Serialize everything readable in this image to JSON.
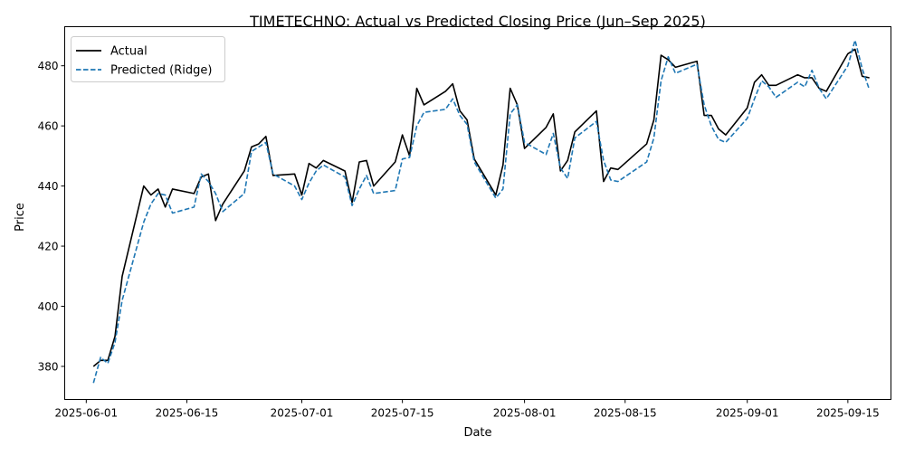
{
  "chart_data": {
    "type": "line",
    "title": "TIMETECHNO: Actual vs Predicted Closing Price (Jun–Sep 2025)",
    "xlabel": "Date",
    "ylabel": "Price",
    "xlim": [
      "2025-05-29",
      "2025-09-21"
    ],
    "ylim": [
      369,
      493
    ],
    "x_ticks": [
      "2025-06-01",
      "2025-06-15",
      "2025-07-01",
      "2025-07-15",
      "2025-08-01",
      "2025-08-15",
      "2025-09-01",
      "2025-09-15"
    ],
    "y_ticks": [
      380,
      400,
      420,
      440,
      460,
      480
    ],
    "grid": false,
    "legend_position": "top-left",
    "series": [
      {
        "name": "Actual",
        "color": "#000000",
        "style": "solid",
        "points": [
          [
            "2025-06-02",
            380
          ],
          [
            "2025-06-03",
            382
          ],
          [
            "2025-06-04",
            382
          ],
          [
            "2025-06-05",
            390
          ],
          [
            "2025-06-06",
            410
          ],
          [
            "2025-06-09",
            440
          ],
          [
            "2025-06-10",
            437
          ],
          [
            "2025-06-11",
            439
          ],
          [
            "2025-06-12",
            433
          ],
          [
            "2025-06-13",
            439
          ],
          [
            "2025-06-16",
            437.5
          ],
          [
            "2025-06-17",
            443
          ],
          [
            "2025-06-18",
            444
          ],
          [
            "2025-06-19",
            428.5
          ],
          [
            "2025-06-20",
            434
          ],
          [
            "2025-06-23",
            445
          ],
          [
            "2025-06-24",
            453
          ],
          [
            "2025-06-25",
            454
          ],
          [
            "2025-06-26",
            456.5
          ],
          [
            "2025-06-27",
            443.5
          ],
          [
            "2025-06-30",
            444
          ],
          [
            "2025-07-01",
            437
          ],
          [
            "2025-07-02",
            447.5
          ],
          [
            "2025-07-03",
            446
          ],
          [
            "2025-07-04",
            448.5
          ],
          [
            "2025-07-07",
            445
          ],
          [
            "2025-07-08",
            434.5
          ],
          [
            "2025-07-09",
            448
          ],
          [
            "2025-07-10",
            448.5
          ],
          [
            "2025-07-11",
            440
          ],
          [
            "2025-07-14",
            448
          ],
          [
            "2025-07-15",
            457
          ],
          [
            "2025-07-16",
            450
          ],
          [
            "2025-07-17",
            472.5
          ],
          [
            "2025-07-18",
            467
          ],
          [
            "2025-07-21",
            471.5
          ],
          [
            "2025-07-22",
            474
          ],
          [
            "2025-07-23",
            465
          ],
          [
            "2025-07-24",
            462
          ],
          [
            "2025-07-25",
            449
          ],
          [
            "2025-07-28",
            437
          ],
          [
            "2025-07-29",
            447
          ],
          [
            "2025-07-30",
            472.5
          ],
          [
            "2025-07-31",
            467
          ],
          [
            "2025-08-01",
            452.5
          ],
          [
            "2025-08-04",
            459.5
          ],
          [
            "2025-08-05",
            464
          ],
          [
            "2025-08-06",
            445
          ],
          [
            "2025-08-07",
            448.5
          ],
          [
            "2025-08-08",
            458
          ],
          [
            "2025-08-11",
            465
          ],
          [
            "2025-08-12",
            441.5
          ],
          [
            "2025-08-13",
            446
          ],
          [
            "2025-08-14",
            445.5
          ],
          [
            "2025-08-18",
            454
          ],
          [
            "2025-08-19",
            462
          ],
          [
            "2025-08-20",
            483.5
          ],
          [
            "2025-08-21",
            482
          ],
          [
            "2025-08-22",
            479.5
          ],
          [
            "2025-08-25",
            481.5
          ],
          [
            "2025-08-26",
            463.5
          ],
          [
            "2025-08-27",
            463.5
          ],
          [
            "2025-08-28",
            459
          ],
          [
            "2025-08-29",
            457
          ],
          [
            "2025-09-01",
            466
          ],
          [
            "2025-09-02",
            474.5
          ],
          [
            "2025-09-03",
            477
          ],
          [
            "2025-09-04",
            473.5
          ],
          [
            "2025-09-05",
            473.5
          ],
          [
            "2025-09-08",
            477
          ],
          [
            "2025-09-09",
            476
          ],
          [
            "2025-09-10",
            476
          ],
          [
            "2025-09-11",
            472.5
          ],
          [
            "2025-09-12",
            471.5
          ],
          [
            "2025-09-15",
            484
          ],
          [
            "2025-09-16",
            485.5
          ],
          [
            "2025-09-17",
            476.5
          ],
          [
            "2025-09-18",
            476
          ]
        ]
      },
      {
        "name": "Predicted (Ridge)",
        "color": "#1f77b4",
        "style": "dashed",
        "points": [
          [
            "2025-06-02",
            374.5
          ],
          [
            "2025-06-03",
            383
          ],
          [
            "2025-06-04",
            381
          ],
          [
            "2025-06-05",
            388
          ],
          [
            "2025-06-06",
            402
          ],
          [
            "2025-06-09",
            428
          ],
          [
            "2025-06-10",
            434
          ],
          [
            "2025-06-11",
            437.5
          ],
          [
            "2025-06-12",
            437
          ],
          [
            "2025-06-13",
            431
          ],
          [
            "2025-06-16",
            433
          ],
          [
            "2025-06-17",
            444
          ],
          [
            "2025-06-18",
            441.5
          ],
          [
            "2025-06-19",
            437.5
          ],
          [
            "2025-06-20",
            431.5
          ],
          [
            "2025-06-23",
            437.5
          ],
          [
            "2025-06-24",
            451.5
          ],
          [
            "2025-06-25",
            453
          ],
          [
            "2025-06-26",
            454.5
          ],
          [
            "2025-06-27",
            444
          ],
          [
            "2025-06-30",
            440
          ],
          [
            "2025-07-01",
            435.5
          ],
          [
            "2025-07-02",
            441
          ],
          [
            "2025-07-03",
            445
          ],
          [
            "2025-07-04",
            447
          ],
          [
            "2025-07-07",
            443
          ],
          [
            "2025-07-08",
            433.5
          ],
          [
            "2025-07-09",
            439
          ],
          [
            "2025-07-10",
            443.5
          ],
          [
            "2025-07-11",
            437.5
          ],
          [
            "2025-07-14",
            438.5
          ],
          [
            "2025-07-15",
            449
          ],
          [
            "2025-07-16",
            449.5
          ],
          [
            "2025-07-17",
            460
          ],
          [
            "2025-07-18",
            464.5
          ],
          [
            "2025-07-21",
            465.5
          ],
          [
            "2025-07-22",
            469
          ],
          [
            "2025-07-23",
            463.5
          ],
          [
            "2025-07-24",
            460.5
          ],
          [
            "2025-07-25",
            448
          ],
          [
            "2025-07-28",
            436
          ],
          [
            "2025-07-29",
            439
          ],
          [
            "2025-07-30",
            464
          ],
          [
            "2025-07-31",
            467
          ],
          [
            "2025-08-01",
            454.5
          ],
          [
            "2025-08-04",
            450.5
          ],
          [
            "2025-08-05",
            457.5
          ],
          [
            "2025-08-06",
            446
          ],
          [
            "2025-08-07",
            442.5
          ],
          [
            "2025-08-08",
            456
          ],
          [
            "2025-08-11",
            461.5
          ],
          [
            "2025-08-12",
            448.5
          ],
          [
            "2025-08-13",
            442
          ],
          [
            "2025-08-14",
            441.5
          ],
          [
            "2025-08-18",
            448
          ],
          [
            "2025-08-19",
            456
          ],
          [
            "2025-08-20",
            475
          ],
          [
            "2025-08-21",
            483
          ],
          [
            "2025-08-22",
            477.5
          ],
          [
            "2025-08-25",
            480.5
          ],
          [
            "2025-08-26",
            467
          ],
          [
            "2025-08-27",
            460
          ],
          [
            "2025-08-28",
            455.5
          ],
          [
            "2025-08-29",
            454.5
          ],
          [
            "2025-09-01",
            462.5
          ],
          [
            "2025-09-02",
            469
          ],
          [
            "2025-09-03",
            475
          ],
          [
            "2025-09-04",
            473
          ],
          [
            "2025-09-05",
            469.5
          ],
          [
            "2025-09-08",
            474.5
          ],
          [
            "2025-09-09",
            473
          ],
          [
            "2025-09-10",
            478.5
          ],
          [
            "2025-09-11",
            472.5
          ],
          [
            "2025-09-12",
            469
          ],
          [
            "2025-09-15",
            480
          ],
          [
            "2025-09-16",
            488.5
          ],
          [
            "2025-09-17",
            479
          ],
          [
            "2025-09-18",
            472
          ]
        ]
      }
    ]
  }
}
